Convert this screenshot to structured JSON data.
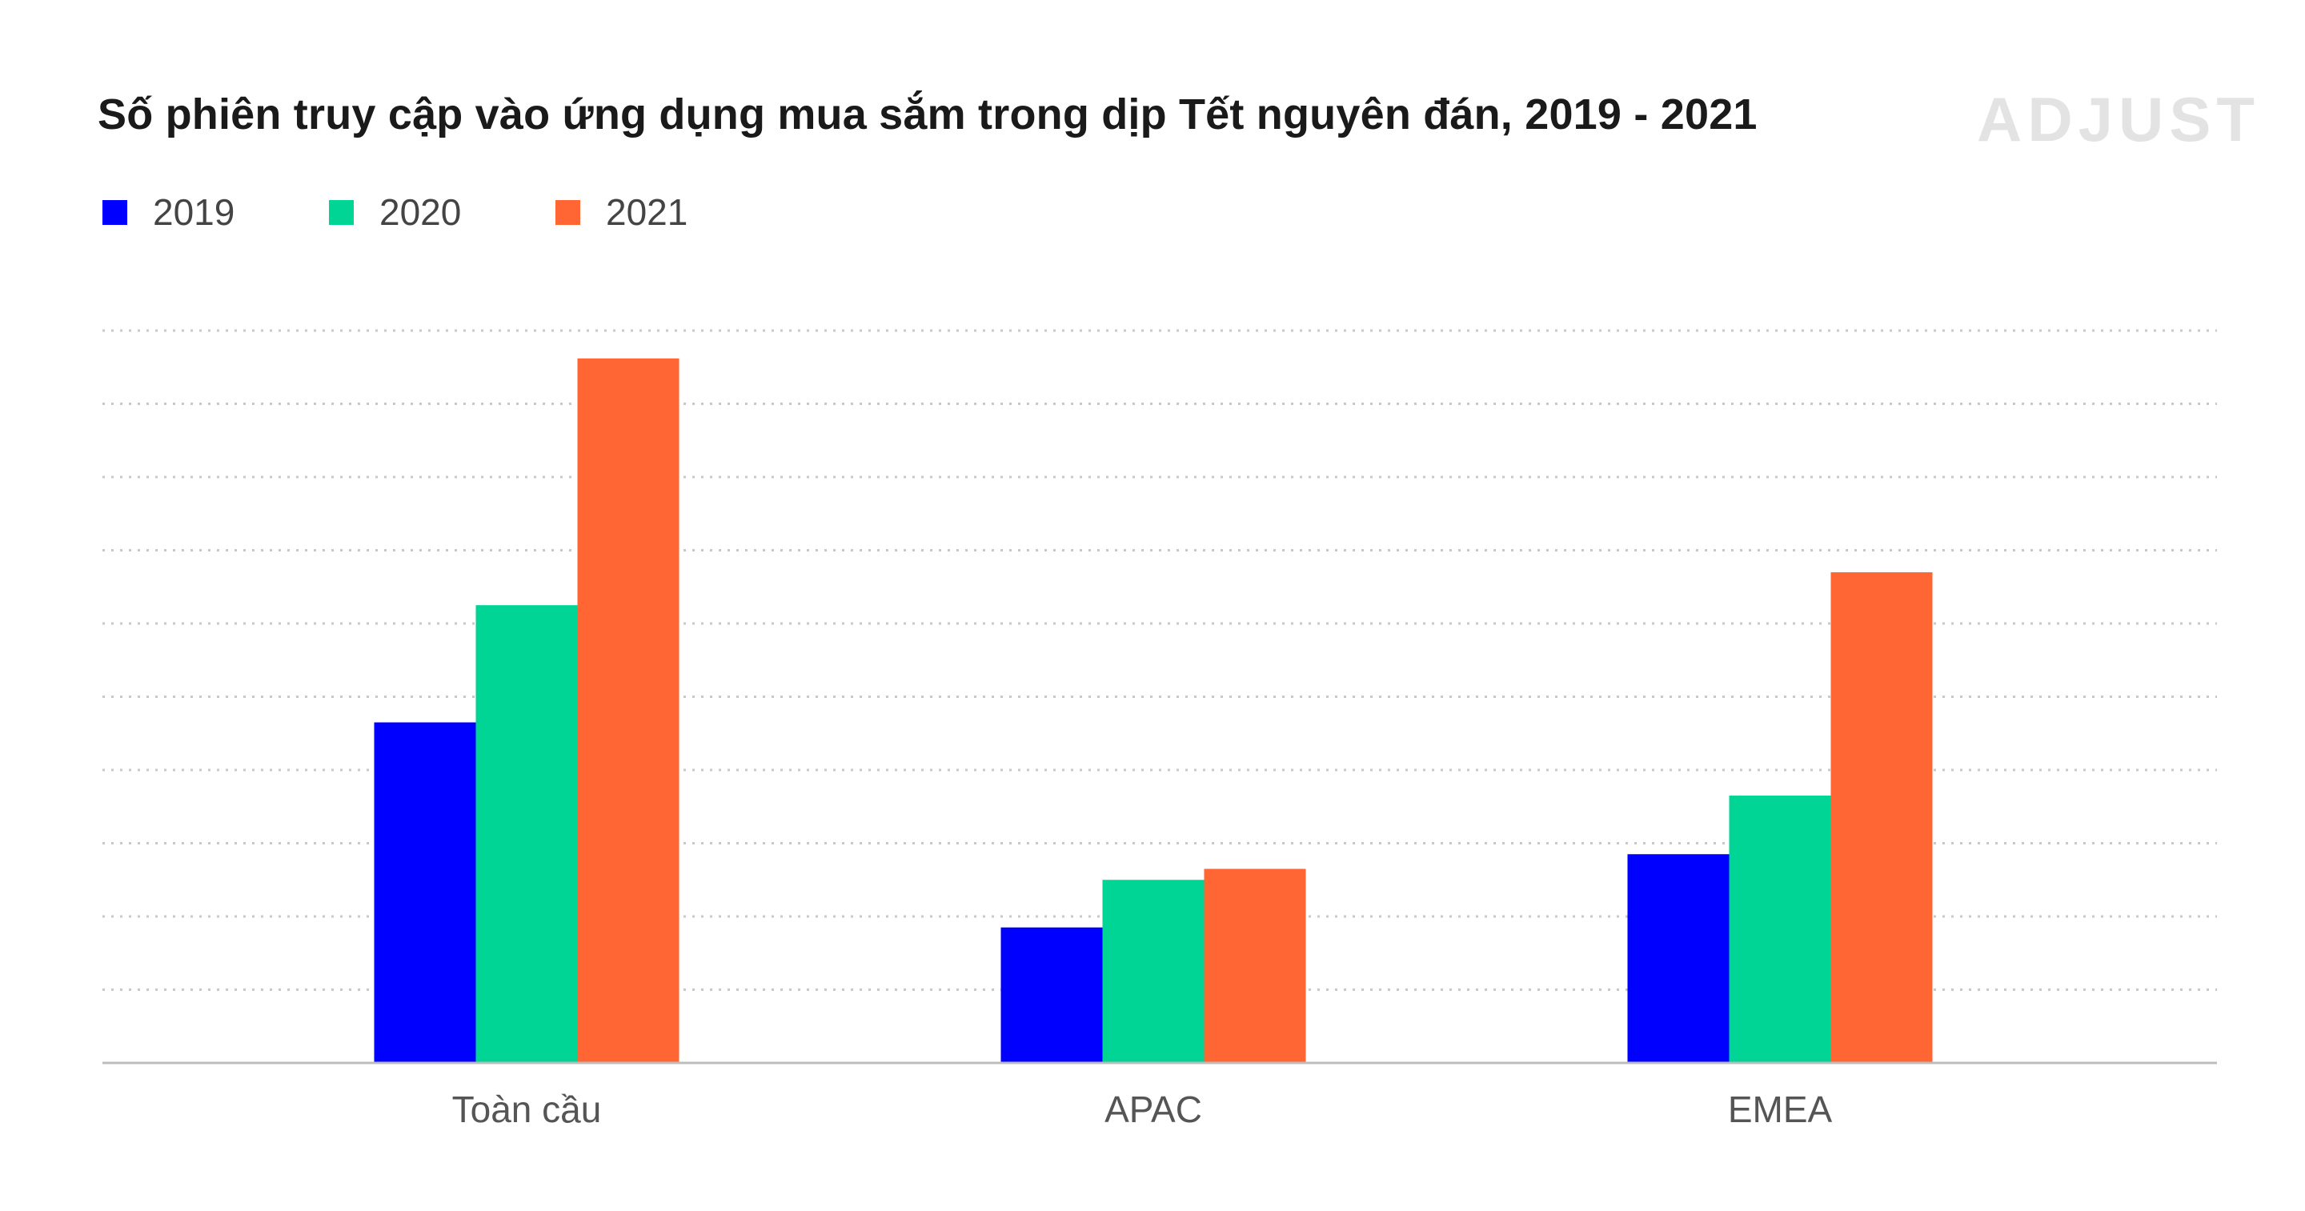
{
  "chart_data": {
    "type": "bar",
    "title": "Số phiên truy cập vào ứng dụng mua sắm trong dịp Tết nguyên đán, 2019 - 2021",
    "categories": [
      "Toàn cầu",
      "APAC",
      "EMEA"
    ],
    "series": [
      {
        "name": "2019",
        "color": "#0000ff",
        "values": [
          4.65,
          1.85,
          2.85
        ]
      },
      {
        "name": "2020",
        "color": "#00d595",
        "values": [
          6.25,
          2.5,
          3.65
        ]
      },
      {
        "name": "2021",
        "color": "#ff6633",
        "values": [
          9.62,
          2.65,
          6.7
        ]
      }
    ],
    "ylim": [
      0,
      10
    ],
    "grid": true,
    "legend": "top-left",
    "xlabel": "",
    "ylabel": ""
  },
  "logo": {
    "text": "ADJUST"
  }
}
